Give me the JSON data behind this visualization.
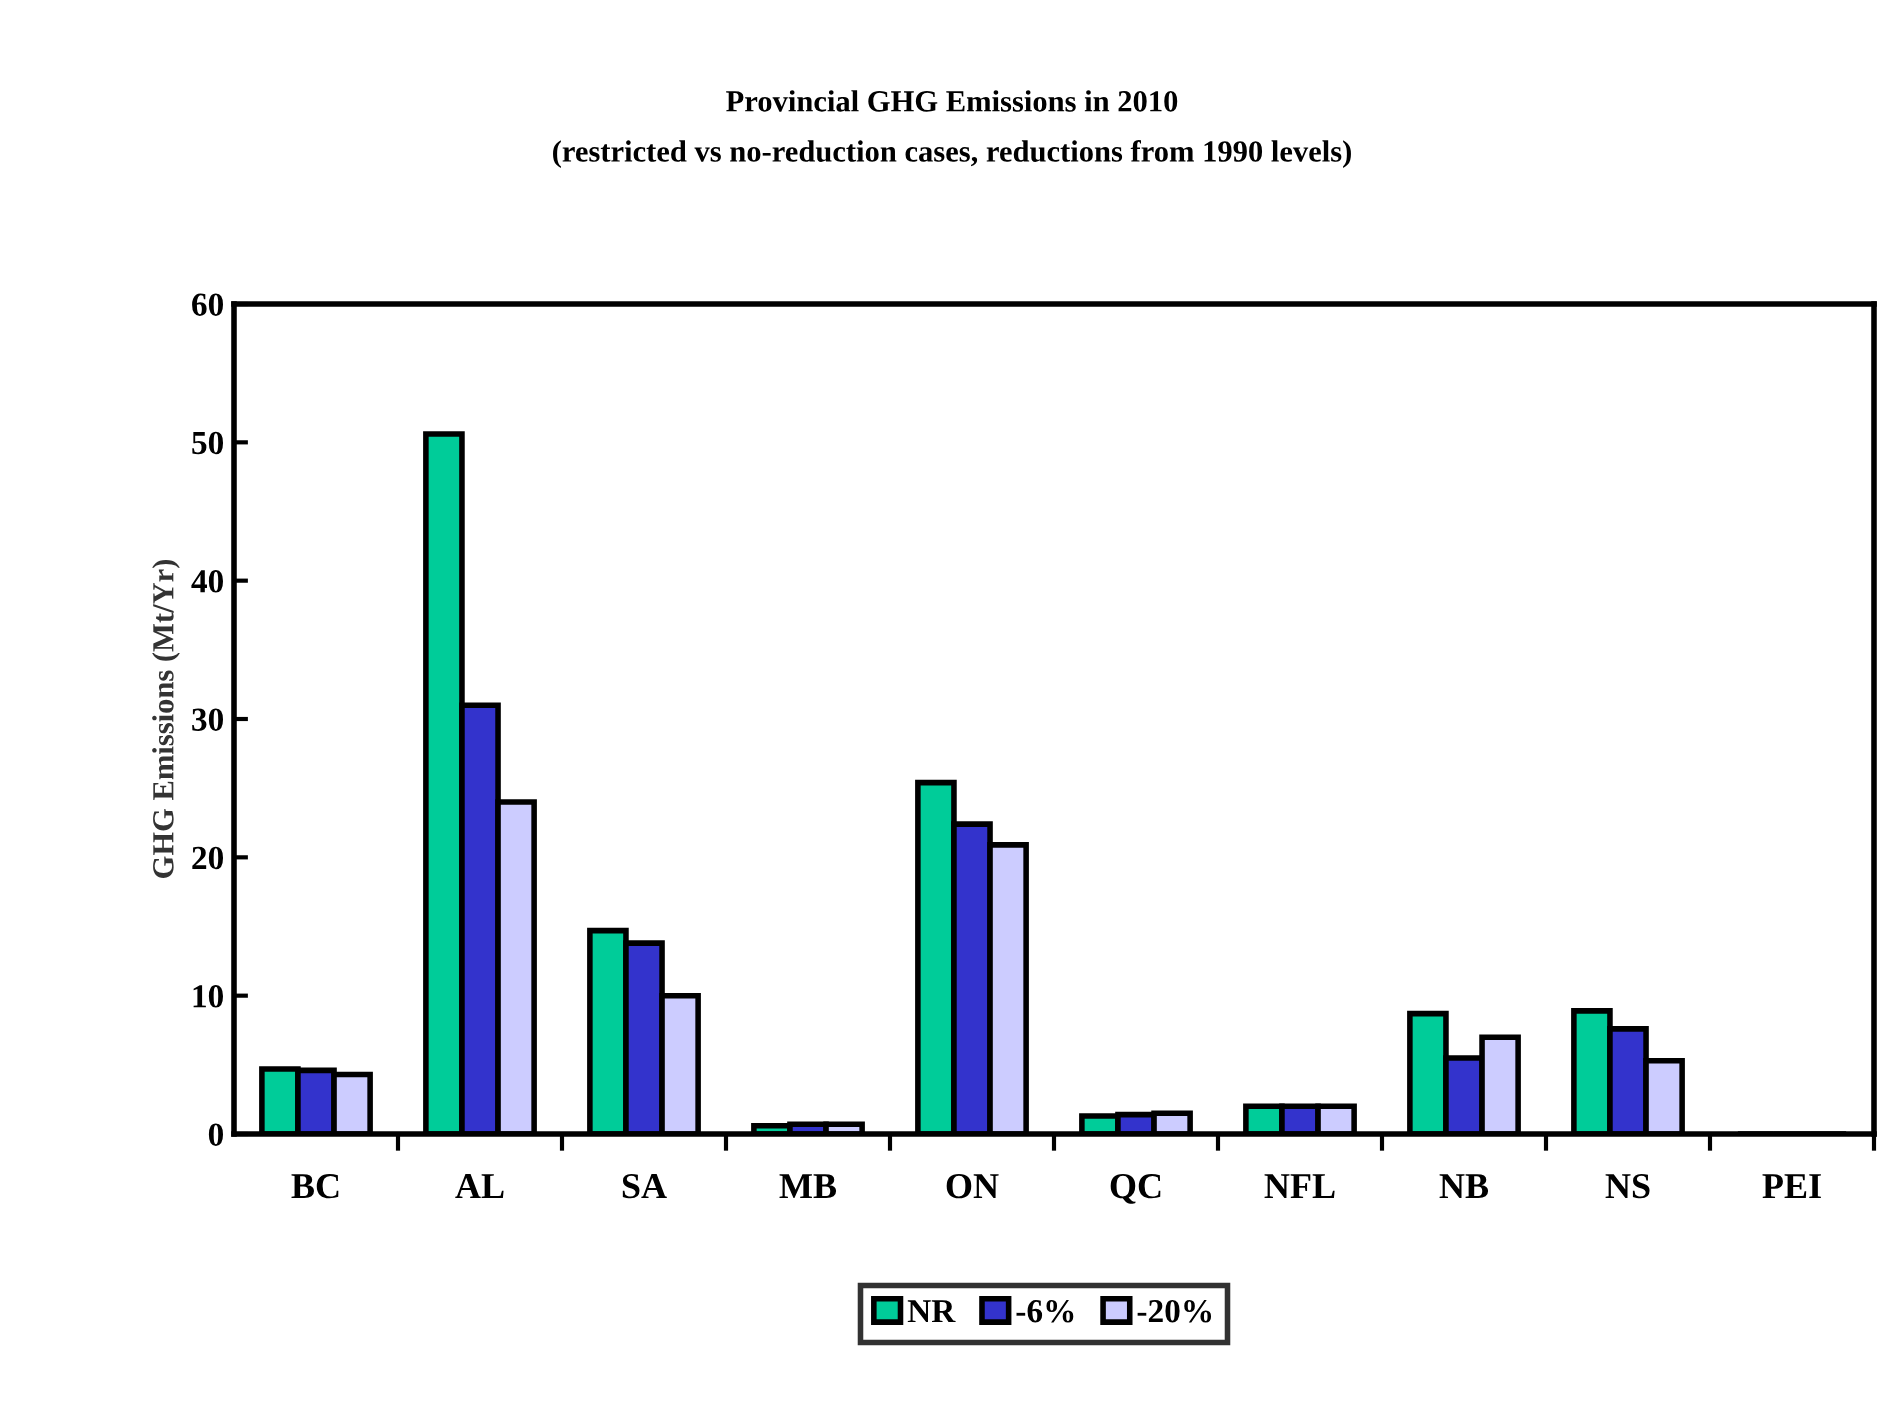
{
  "chart_data": {
    "type": "bar",
    "title": "Provincial GHG Emissions in 2010",
    "subtitle": "(restricted vs no-reduction cases, reductions from 1990 levels)",
    "ylabel": "GHG Emissions (Mt/Yr)",
    "categories": [
      "BC",
      "AL",
      "SA",
      "MB",
      "ON",
      "QC",
      "NFL",
      "NB",
      "NS",
      "PEI"
    ],
    "series": [
      {
        "name": "NR",
        "color": "#00cc99",
        "values": [
          4.7,
          50.6,
          14.7,
          0.6,
          25.4,
          1.3,
          2.0,
          8.7,
          8.9,
          null
        ]
      },
      {
        "name": "-6%",
        "color": "#3333cc",
        "values": [
          4.6,
          31.0,
          13.8,
          0.7,
          22.4,
          1.4,
          2.0,
          5.5,
          7.6,
          null
        ]
      },
      {
        "name": "-20%",
        "color": "#ccccff",
        "values": [
          4.3,
          24.0,
          10.0,
          0.7,
          20.9,
          1.5,
          2.0,
          7.0,
          5.3,
          null
        ]
      }
    ],
    "ylim": [
      0,
      60
    ],
    "yticks": [
      0,
      10,
      20,
      30,
      40,
      50,
      60
    ],
    "grid": false,
    "legend": "bottom"
  }
}
